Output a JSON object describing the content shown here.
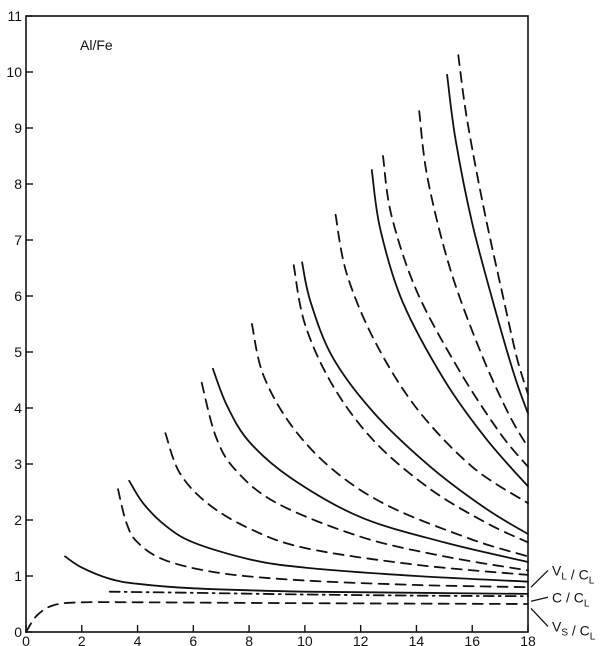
{
  "chart_data": {
    "type": "line",
    "title": "",
    "xlabel": "",
    "ylabel": "",
    "annotation": "Al/Fe",
    "xlim": [
      0,
      18
    ],
    "ylim": [
      0,
      11
    ],
    "x_ticks": [
      "0",
      "2",
      "4",
      "6",
      "8",
      "10",
      "12",
      "14",
      "16",
      "18"
    ],
    "y_ticks": [
      "0",
      "1",
      "2",
      "3",
      "4",
      "5",
      "6",
      "7",
      "8",
      "9",
      "10",
      "11"
    ],
    "grid": false,
    "right_labels": [
      {
        "text": "V",
        "sub": "L",
        "mid": " / C",
        "sub2": "L",
        "y": 1.1
      },
      {
        "text": "C / C",
        "sub": "",
        "mid": "",
        "sub2": "L",
        "y": 0.62
      },
      {
        "text": "V",
        "sub": "S",
        "mid": " / C",
        "sub2": "L",
        "y": 0.1
      }
    ],
    "series": [
      {
        "style": "dash",
        "values": [
          [
            0,
            0
          ],
          [
            0.4,
            0.3
          ],
          [
            1,
            0.48
          ],
          [
            2,
            0.53
          ],
          [
            4,
            0.53
          ],
          [
            8,
            0.52
          ],
          [
            12,
            0.51
          ],
          [
            18,
            0.5
          ]
        ]
      },
      {
        "style": "dashdot",
        "values": [
          [
            3,
            0.72
          ],
          [
            6,
            0.7
          ],
          [
            10,
            0.67
          ],
          [
            14,
            0.65
          ],
          [
            18,
            0.64
          ]
        ]
      },
      {
        "style": "solid",
        "values": [
          [
            1.4,
            1.35
          ],
          [
            2,
            1.15
          ],
          [
            3,
            0.95
          ],
          [
            4,
            0.86
          ],
          [
            6,
            0.78
          ],
          [
            10,
            0.72
          ],
          [
            14,
            0.7
          ],
          [
            18,
            0.68
          ]
        ]
      },
      {
        "style": "dash",
        "values": [
          [
            3.3,
            2.55
          ],
          [
            3.6,
            1.95
          ],
          [
            4,
            1.6
          ],
          [
            5,
            1.28
          ],
          [
            7,
            1.05
          ],
          [
            10,
            0.92
          ],
          [
            14,
            0.84
          ],
          [
            18,
            0.8
          ]
        ]
      },
      {
        "style": "solid",
        "values": [
          [
            3.7,
            2.7
          ],
          [
            4.2,
            2.3
          ],
          [
            5,
            1.9
          ],
          [
            6,
            1.6
          ],
          [
            8,
            1.3
          ],
          [
            10,
            1.15
          ],
          [
            14,
            1.0
          ],
          [
            18,
            0.9
          ]
        ]
      },
      {
        "style": "dash",
        "values": [
          [
            5.0,
            3.55
          ],
          [
            5.5,
            2.85
          ],
          [
            6.5,
            2.3
          ],
          [
            8,
            1.85
          ],
          [
            10,
            1.5
          ],
          [
            14,
            1.2
          ],
          [
            18,
            1.02
          ]
        ]
      },
      {
        "style": "dash",
        "values": [
          [
            6.3,
            4.45
          ],
          [
            6.8,
            3.5
          ],
          [
            7.5,
            2.9
          ],
          [
            9,
            2.3
          ],
          [
            12,
            1.7
          ],
          [
            15,
            1.35
          ],
          [
            18,
            1.1
          ]
        ]
      },
      {
        "style": "solid",
        "values": [
          [
            6.7,
            4.7
          ],
          [
            7.2,
            4.05
          ],
          [
            8,
            3.4
          ],
          [
            9.5,
            2.75
          ],
          [
            12,
            2.05
          ],
          [
            15,
            1.6
          ],
          [
            18,
            1.25
          ]
        ]
      },
      {
        "style": "dash",
        "values": [
          [
            8.1,
            5.5
          ],
          [
            8.5,
            4.6
          ],
          [
            9.5,
            3.7
          ],
          [
            11,
            2.9
          ],
          [
            13,
            2.25
          ],
          [
            16,
            1.65
          ],
          [
            18,
            1.35
          ]
        ]
      },
      {
        "style": "dash",
        "values": [
          [
            9.6,
            6.55
          ],
          [
            10,
            5.5
          ],
          [
            11,
            4.4
          ],
          [
            12.5,
            3.4
          ],
          [
            14.5,
            2.55
          ],
          [
            16.5,
            1.95
          ],
          [
            18,
            1.6
          ]
        ]
      },
      {
        "style": "solid",
        "values": [
          [
            9.9,
            6.6
          ],
          [
            10.2,
            5.9
          ],
          [
            11,
            4.9
          ],
          [
            12.5,
            3.9
          ],
          [
            14.5,
            2.95
          ],
          [
            16.5,
            2.2
          ],
          [
            18,
            1.75
          ]
        ]
      },
      {
        "style": "dash",
        "values": [
          [
            11.1,
            7.45
          ],
          [
            11.5,
            6.4
          ],
          [
            12.5,
            5.2
          ],
          [
            14,
            4.0
          ],
          [
            16,
            2.95
          ],
          [
            18,
            2.3
          ]
        ]
      },
      {
        "style": "solid",
        "values": [
          [
            12.4,
            8.25
          ],
          [
            12.7,
            7.2
          ],
          [
            13.5,
            5.9
          ],
          [
            15,
            4.5
          ],
          [
            16.5,
            3.45
          ],
          [
            18,
            2.6
          ]
        ]
      },
      {
        "style": "dash",
        "values": [
          [
            12.8,
            8.5
          ],
          [
            13.1,
            7.45
          ],
          [
            14,
            6.1
          ],
          [
            15.5,
            4.7
          ],
          [
            17,
            3.55
          ],
          [
            18,
            2.95
          ]
        ]
      },
      {
        "style": "dash",
        "values": [
          [
            14.1,
            9.3
          ],
          [
            14.4,
            8.1
          ],
          [
            15.2,
            6.5
          ],
          [
            16.3,
            5.0
          ],
          [
            17.3,
            3.9
          ],
          [
            18,
            3.3
          ]
        ]
      },
      {
        "style": "solid",
        "values": [
          [
            15.1,
            9.95
          ],
          [
            15.4,
            8.8
          ],
          [
            16,
            7.3
          ],
          [
            16.8,
            5.8
          ],
          [
            17.5,
            4.6
          ],
          [
            18,
            3.9
          ]
        ]
      },
      {
        "style": "dash",
        "values": [
          [
            15.5,
            10.3
          ],
          [
            15.8,
            9.2
          ],
          [
            16.4,
            7.6
          ],
          [
            17.1,
            6.0
          ],
          [
            17.6,
            4.9
          ],
          [
            18,
            4.25
          ]
        ]
      }
    ]
  }
}
